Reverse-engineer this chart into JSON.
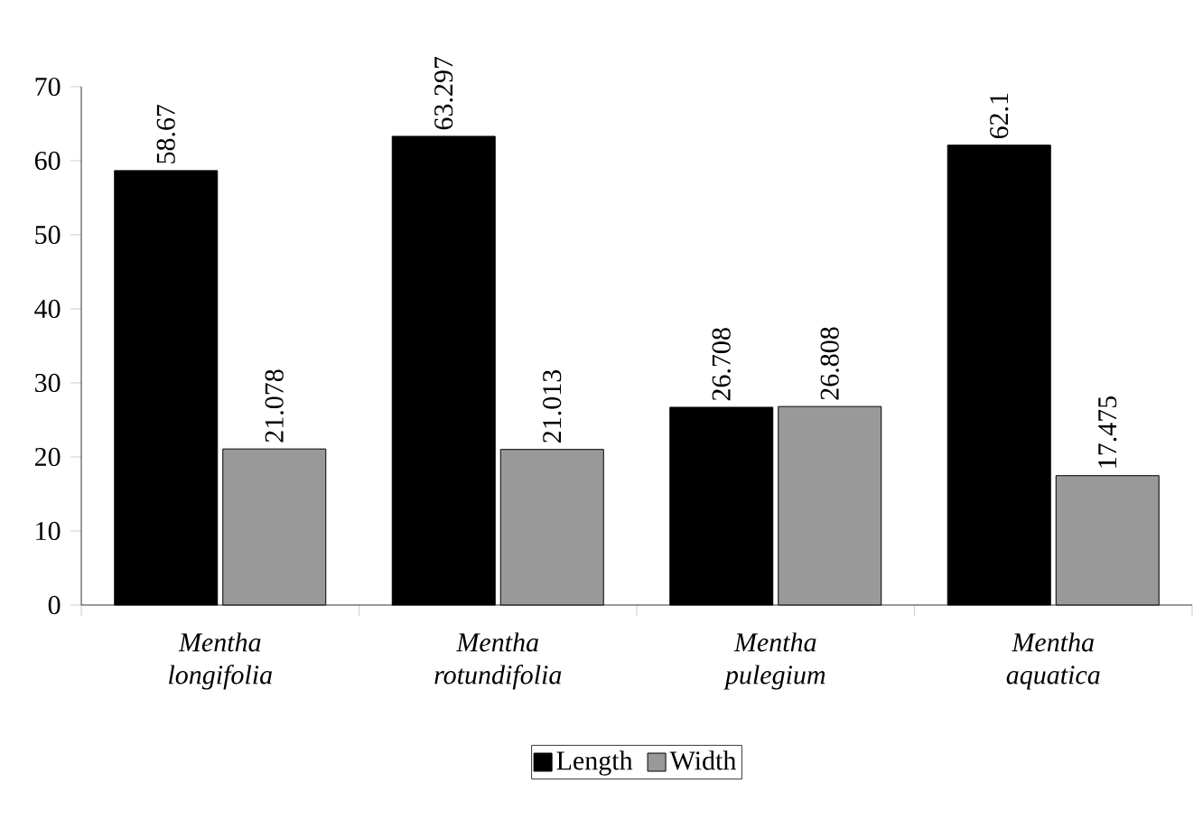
{
  "chart_data": {
    "type": "bar",
    "categories": [
      "Mentha longifolia",
      "Mentha rotundifolia",
      "Mentha pulegium",
      "Mentha aquatica"
    ],
    "series": [
      {
        "name": "Length",
        "color": "#000000",
        "values": [
          58.67,
          63.297,
          26.708,
          62.1
        ]
      },
      {
        "name": "Width",
        "color": "#999999",
        "values": [
          21.078,
          21.013,
          26.808,
          17.475
        ]
      }
    ],
    "ylim": [
      0,
      70
    ],
    "yticks": [
      0,
      10,
      20,
      30,
      40,
      50,
      60,
      70
    ],
    "data_labels": true,
    "legend": "bottom",
    "grid": false
  }
}
